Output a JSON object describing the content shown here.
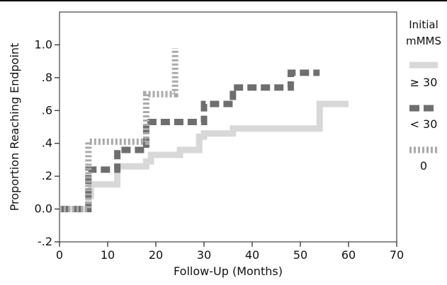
{
  "chart_data": {
    "type": "line",
    "step": true,
    "title": "",
    "xlabel": "Follow-Up (Months)",
    "ylabel": "Proportion Reaching Endpoint",
    "xlim": [
      0,
      70
    ],
    "ylim": [
      -0.2,
      1.2
    ],
    "xticks": [
      0,
      10,
      20,
      30,
      40,
      50,
      60,
      70
    ],
    "xtick_labels": [
      "0",
      "10",
      "20",
      "30",
      "40",
      "50",
      "60",
      "70"
    ],
    "yticks": [
      -0.2,
      0.0,
      0.2,
      0.4,
      0.6,
      0.8,
      1.0
    ],
    "ytick_labels": [
      "-.2",
      "0.0",
      ".2",
      ".4",
      ".6",
      ".8",
      "1.0"
    ],
    "grid": false,
    "legend": {
      "title_lines": [
        "Initial",
        "mMMS"
      ],
      "placement": "right"
    },
    "series": [
      {
        "name": "≥ 30",
        "color": "#d8d8d8",
        "style": "solid",
        "points": [
          [
            0,
            0.0
          ],
          [
            6,
            0.0
          ],
          [
            6,
            0.08
          ],
          [
            6.5,
            0.08
          ],
          [
            6.5,
            0.15
          ],
          [
            12,
            0.15
          ],
          [
            12,
            0.26
          ],
          [
            18,
            0.26
          ],
          [
            18,
            0.29
          ],
          [
            19,
            0.29
          ],
          [
            19,
            0.33
          ],
          [
            25,
            0.33
          ],
          [
            25,
            0.36
          ],
          [
            29,
            0.36
          ],
          [
            29,
            0.44
          ],
          [
            30,
            0.44
          ],
          [
            30,
            0.46
          ],
          [
            36,
            0.46
          ],
          [
            36,
            0.49
          ],
          [
            54,
            0.49
          ],
          [
            54,
            0.64
          ],
          [
            60,
            0.64
          ]
        ]
      },
      {
        "name": "< 30",
        "color": "#6e6e6e",
        "style": "dashed",
        "points": [
          [
            0,
            0.0
          ],
          [
            6,
            0.0
          ],
          [
            6,
            0.24
          ],
          [
            12,
            0.24
          ],
          [
            12,
            0.36
          ],
          [
            18,
            0.36
          ],
          [
            18,
            0.53
          ],
          [
            30,
            0.53
          ],
          [
            30,
            0.64
          ],
          [
            36,
            0.64
          ],
          [
            36,
            0.74
          ],
          [
            48,
            0.74
          ],
          [
            48,
            0.83
          ],
          [
            54,
            0.83
          ]
        ]
      },
      {
        "name": "0",
        "color": "#aaaaaa",
        "style": "dotted",
        "points": [
          [
            0,
            0.0
          ],
          [
            6,
            0.0
          ],
          [
            6,
            0.41
          ],
          [
            18,
            0.41
          ],
          [
            18,
            0.7
          ],
          [
            24,
            0.7
          ],
          [
            24,
            0.98
          ]
        ]
      }
    ]
  }
}
